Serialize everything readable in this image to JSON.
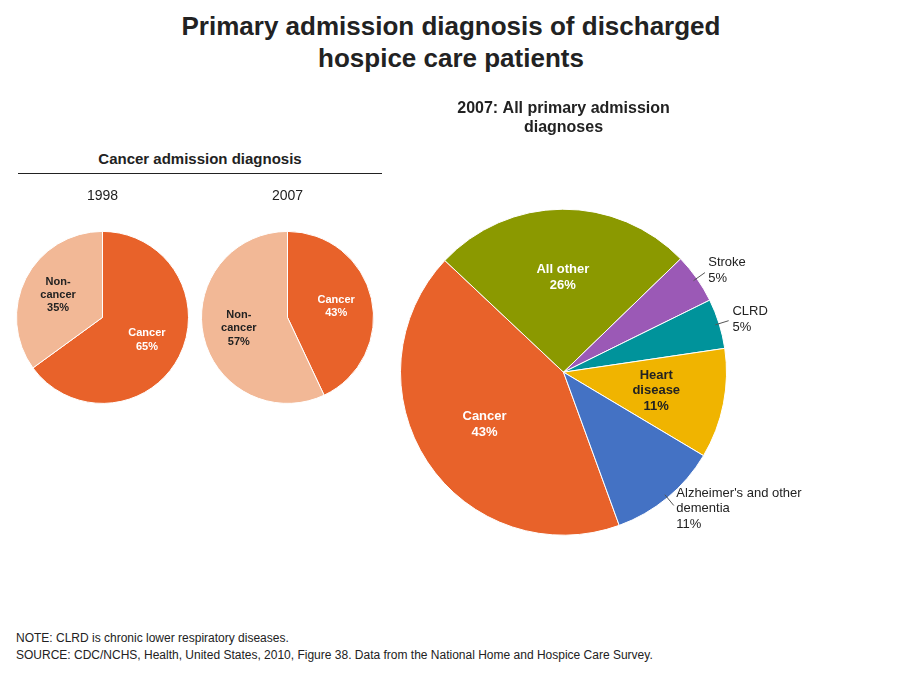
{
  "title": "Primary admission diagnosis of discharged\nhospice care patients",
  "annotations": [
    "Cancer admission diagnosis",
    "NOTE: CLRD is chronic lower respiratory diseases.",
    "SOURCE: CDC/NCHS, Health, United States, 2010, Figure 38. Data from the National Home and Hospice Care Survey."
  ],
  "chart_data": [
    {
      "type": "pie",
      "title": "1998",
      "categories": [
        "Cancer",
        "Non-\ncancer"
      ],
      "values": [
        65,
        35
      ],
      "value_labels": [
        "65%",
        "35%"
      ],
      "colors": [
        "#E8622A",
        "#F2B896"
      ],
      "data_labels": true
    },
    {
      "type": "pie",
      "title": "2007",
      "categories": [
        "Cancer",
        "Non-\ncancer"
      ],
      "values": [
        43,
        57
      ],
      "value_labels": [
        "43%",
        "57%"
      ],
      "colors": [
        "#E8622A",
        "#F2B896"
      ],
      "data_labels": true
    },
    {
      "type": "pie",
      "title": "2007: All primary admission\ndiagnoses",
      "categories": [
        "Cancer",
        "All other",
        "Stroke",
        "CLRD",
        "Heart\ndisease",
        "Alzheimer's and other\ndementia"
      ],
      "values": [
        43,
        26,
        5,
        5,
        11,
        11
      ],
      "value_labels": [
        "43%",
        "26%",
        "5%",
        "5%",
        "11%",
        "11%"
      ],
      "colors": [
        "#E8622A",
        "#8B9900",
        "#9B59B6",
        "#00939B",
        "#F0B400",
        "#4472C4"
      ],
      "data_labels": true
    }
  ]
}
